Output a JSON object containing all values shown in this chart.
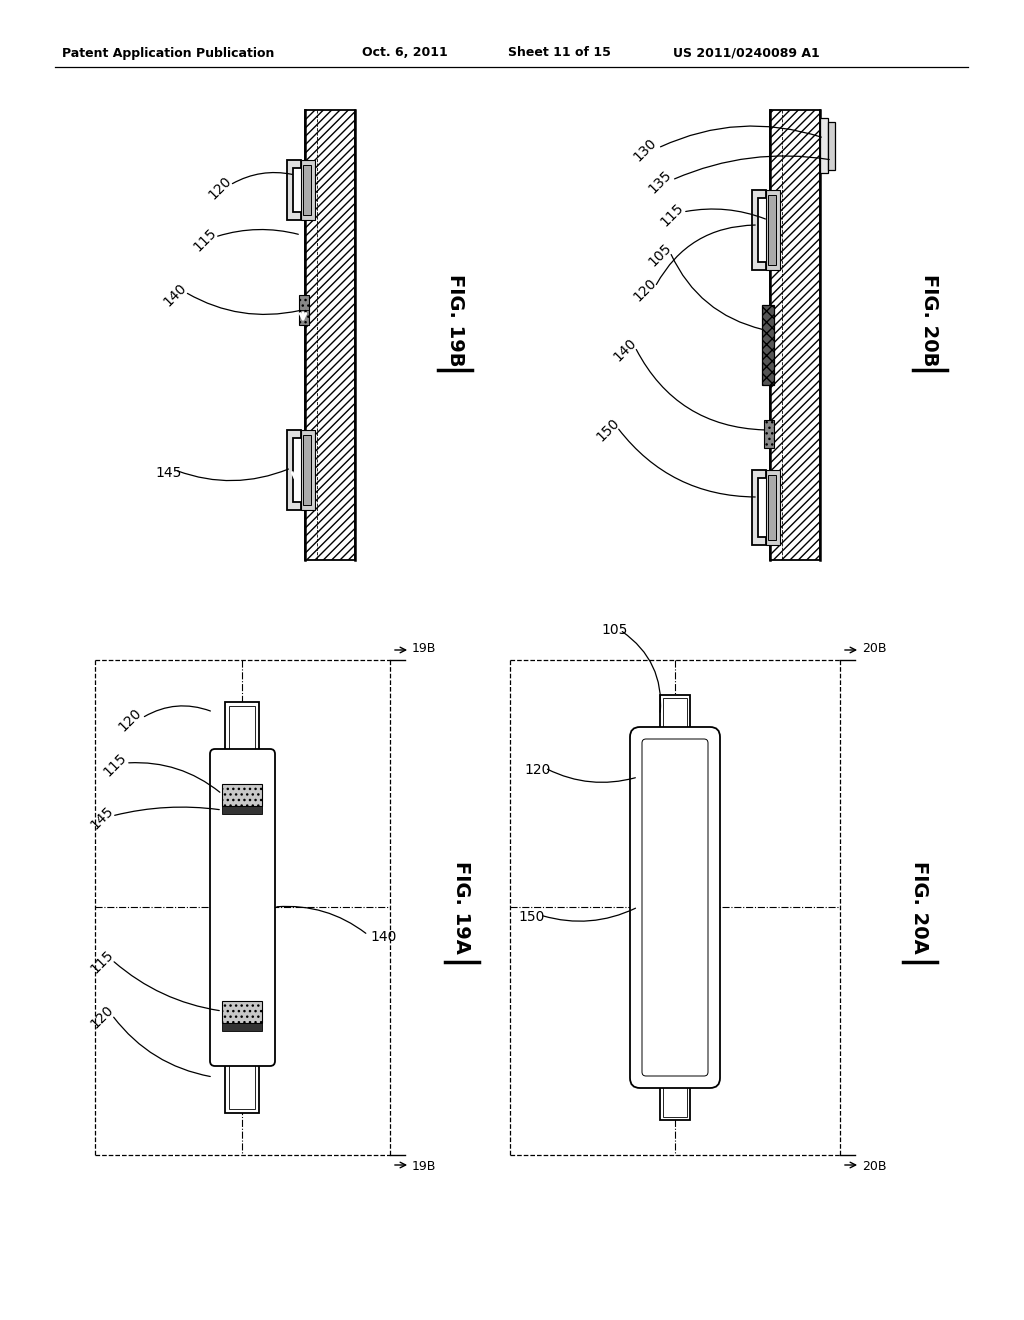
{
  "header_left": "Patent Application Publication",
  "header_mid": "Oct. 6, 2011",
  "header_right_sheet": "Sheet 11 of 15",
  "header_right_patent": "US 2011/0240089 A1",
  "bg": "#ffffff",
  "lc": "#000000",
  "fig19b": "FIG. 19B",
  "fig20b": "FIG. 20B",
  "fig19a": "FIG. 19A",
  "fig20a": "FIG. 20A"
}
